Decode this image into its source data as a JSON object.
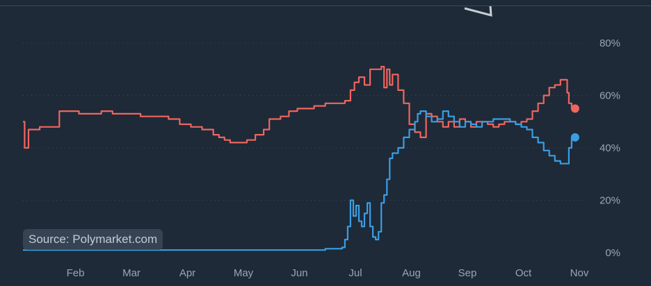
{
  "source_note": "Source: Polymarket.com",
  "colors": {
    "background": "#1e2a38",
    "grid": "#3a4a5c",
    "tick_text": "#9aa6b2",
    "red_series": "#f0655f",
    "blue_series": "#3a9ee4"
  },
  "chart_data": {
    "type": "line",
    "title": "",
    "xlabel": "",
    "ylabel": "",
    "ylim": [
      0,
      80
    ],
    "y_axis_position": "right",
    "y_ticks": [
      0,
      20,
      40,
      60,
      80
    ],
    "y_tick_labels": [
      "0%",
      "20%",
      "40%",
      "60%",
      "80%"
    ],
    "x_tick_labels": [
      "Feb",
      "Mar",
      "Apr",
      "May",
      "Jun",
      "Jul",
      "Aug",
      "Sep",
      "Oct",
      "Nov"
    ],
    "x_tick_values": [
      1.0,
      2.0,
      3.0,
      4.0,
      5.0,
      6.0,
      7.0,
      8.0,
      9.0,
      10.0
    ],
    "grid": true,
    "series": [
      {
        "color": "#f0655f",
        "end_marker": true,
        "x": [
          0.0,
          0.03,
          0.1,
          0.2,
          0.3,
          0.5,
          0.65,
          0.8,
          1.0,
          1.1,
          1.2,
          1.4,
          1.6,
          1.9,
          2.1,
          2.3,
          2.6,
          2.8,
          3.0,
          3.2,
          3.4,
          3.5,
          3.6,
          3.7,
          3.8,
          4.0,
          4.15,
          4.3,
          4.4,
          4.6,
          4.75,
          4.9,
          5.0,
          5.2,
          5.4,
          5.6,
          5.75,
          5.85,
          5.92,
          6.0,
          6.1,
          6.2,
          6.3,
          6.4,
          6.45,
          6.5,
          6.55,
          6.6,
          6.7,
          6.8,
          6.9,
          7.0,
          7.1,
          7.2,
          7.3,
          7.4,
          7.5,
          7.6,
          7.7,
          7.8,
          7.9,
          8.0,
          8.1,
          8.2,
          8.3,
          8.4,
          8.5,
          8.6,
          8.7,
          8.8,
          8.9,
          9.0,
          9.1,
          9.2,
          9.3,
          9.4,
          9.5,
          9.6,
          9.7,
          9.72,
          9.75,
          9.8
        ],
        "y": [
          50,
          40,
          47,
          47,
          48,
          48,
          54,
          54,
          53,
          53,
          53,
          54,
          53,
          53,
          52,
          52,
          51,
          49,
          48,
          47,
          45,
          44,
          43,
          42,
          42,
          43,
          45,
          47,
          51,
          52,
          54,
          55,
          55,
          56,
          57,
          57,
          58,
          62,
          65,
          67,
          64,
          70,
          70,
          71,
          63,
          70,
          64,
          68,
          62,
          57,
          49,
          46,
          44,
          53,
          52,
          50,
          48,
          50,
          48,
          51,
          50,
          48,
          50,
          50,
          49,
          48,
          49,
          50,
          50,
          49,
          50,
          51,
          54,
          57,
          60,
          63,
          64,
          66,
          66,
          61,
          57,
          55
        ]
      },
      {
        "color": "#3a9ee4",
        "end_marker": true,
        "x": [
          0.0,
          1.0,
          2.0,
          3.0,
          4.0,
          5.0,
          5.4,
          5.6,
          5.7,
          5.75,
          5.8,
          5.85,
          5.9,
          5.95,
          6.0,
          6.05,
          6.1,
          6.15,
          6.2,
          6.25,
          6.3,
          6.35,
          6.4,
          6.45,
          6.5,
          6.55,
          6.6,
          6.7,
          6.8,
          6.9,
          7.0,
          7.05,
          7.1,
          7.2,
          7.3,
          7.4,
          7.5,
          7.6,
          7.7,
          7.8,
          7.9,
          8.0,
          8.1,
          8.2,
          8.3,
          8.4,
          8.5,
          8.6,
          8.7,
          8.8,
          8.9,
          9.0,
          9.1,
          9.2,
          9.3,
          9.4,
          9.5,
          9.6,
          9.7,
          9.75,
          9.8
        ],
        "y": [
          1,
          1,
          1,
          1,
          1,
          1,
          1.5,
          1.5,
          2,
          5,
          10,
          20,
          14,
          18,
          12,
          10,
          15,
          19,
          10,
          6,
          5,
          8,
          19,
          22,
          28,
          36,
          38,
          40,
          44,
          47,
          50,
          53,
          54,
          52,
          50,
          51,
          54,
          52,
          50,
          48,
          50,
          49,
          48,
          50,
          50,
          51,
          51,
          51,
          50,
          49,
          48,
          47,
          44,
          42,
          39,
          37,
          35,
          34,
          34,
          40,
          44
        ]
      }
    ]
  }
}
